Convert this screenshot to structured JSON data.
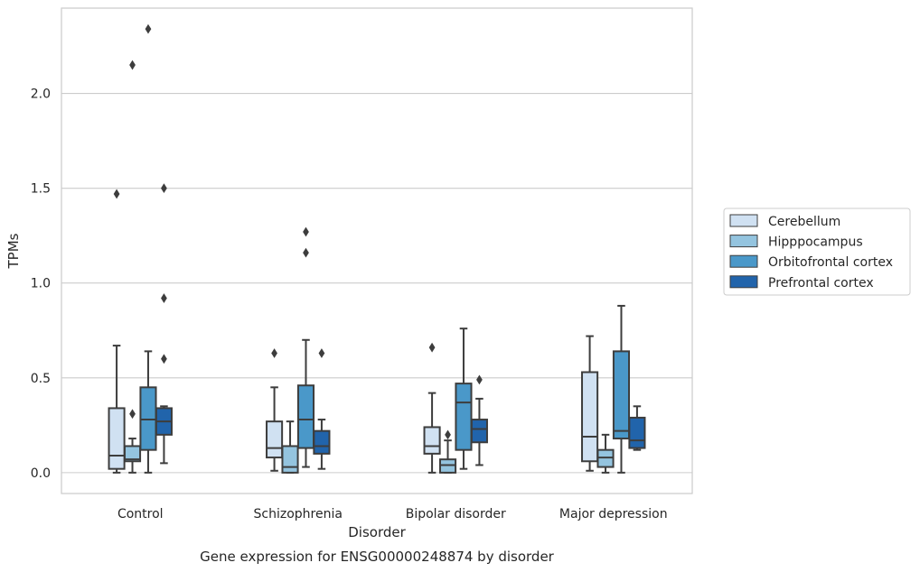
{
  "chart_data": {
    "type": "box",
    "caption": "Gene expression for ENSG00000248874 by disorder",
    "xlabel": "Disorder",
    "ylabel": "TPMs",
    "ylim": [
      -0.11,
      2.45
    ],
    "yticks": [
      0.0,
      0.5,
      1.0,
      1.5,
      2.0
    ],
    "ytick_labels": [
      "0.0",
      "0.5",
      "1.0",
      "1.5",
      "2.0"
    ],
    "grid": "horizontal",
    "legend_position": "right",
    "categories": [
      "Control",
      "Schizophrenia",
      "Bipolar disorder",
      "Major depression"
    ],
    "series": [
      {
        "name": "Cerebellum",
        "color": "#d0e1f2",
        "boxes": [
          {
            "whislo": 0.0,
            "q1": 0.02,
            "med": 0.09,
            "q3": 0.34,
            "whishi": 0.67,
            "fliers": [
              1.47
            ]
          },
          {
            "whislo": 0.01,
            "q1": 0.08,
            "med": 0.13,
            "q3": 0.27,
            "whishi": 0.45,
            "fliers": [
              0.63
            ]
          },
          {
            "whislo": 0.0,
            "q1": 0.1,
            "med": 0.14,
            "q3": 0.24,
            "whishi": 0.42,
            "fliers": [
              0.66
            ]
          },
          {
            "whislo": 0.01,
            "q1": 0.06,
            "med": 0.19,
            "q3": 0.53,
            "whishi": 0.72,
            "fliers": []
          }
        ]
      },
      {
        "name": "Hipppocampus",
        "color": "#94c4df",
        "boxes": [
          {
            "whislo": 0.0,
            "q1": 0.06,
            "med": 0.07,
            "q3": 0.14,
            "whishi": 0.18,
            "fliers": [
              0.31,
              2.15
            ]
          },
          {
            "whislo": 0.0,
            "q1": 0.0,
            "med": 0.03,
            "q3": 0.14,
            "whishi": 0.27,
            "fliers": []
          },
          {
            "whislo": 0.0,
            "q1": 0.0,
            "med": 0.04,
            "q3": 0.07,
            "whishi": 0.17,
            "fliers": [
              0.2
            ]
          },
          {
            "whislo": 0.0,
            "q1": 0.03,
            "med": 0.08,
            "q3": 0.12,
            "whishi": 0.2,
            "fliers": []
          }
        ]
      },
      {
        "name": "Orbitofrontal cortex",
        "color": "#4a98c9",
        "boxes": [
          {
            "whislo": 0.0,
            "q1": 0.12,
            "med": 0.28,
            "q3": 0.45,
            "whishi": 0.64,
            "fliers": [
              2.34
            ]
          },
          {
            "whislo": 0.03,
            "q1": 0.13,
            "med": 0.28,
            "q3": 0.46,
            "whishi": 0.7,
            "fliers": [
              1.16,
              1.27
            ]
          },
          {
            "whislo": 0.02,
            "q1": 0.12,
            "med": 0.37,
            "q3": 0.47,
            "whishi": 0.76,
            "fliers": []
          },
          {
            "whislo": 0.0,
            "q1": 0.18,
            "med": 0.22,
            "q3": 0.64,
            "whishi": 0.88,
            "fliers": []
          }
        ]
      },
      {
        "name": "Prefrontal cortex",
        "color": "#2164ab",
        "boxes": [
          {
            "whislo": 0.05,
            "q1": 0.2,
            "med": 0.27,
            "q3": 0.34,
            "whishi": 0.35,
            "fliers": [
              0.6,
              0.92,
              1.5
            ]
          },
          {
            "whislo": 0.02,
            "q1": 0.1,
            "med": 0.14,
            "q3": 0.22,
            "whishi": 0.28,
            "fliers": [
              0.63
            ]
          },
          {
            "whislo": 0.04,
            "q1": 0.16,
            "med": 0.23,
            "q3": 0.28,
            "whishi": 0.39,
            "fliers": [
              0.49
            ]
          },
          {
            "whislo": 0.12,
            "q1": 0.13,
            "med": 0.17,
            "q3": 0.29,
            "whishi": 0.35,
            "fliers": []
          }
        ]
      }
    ]
  }
}
